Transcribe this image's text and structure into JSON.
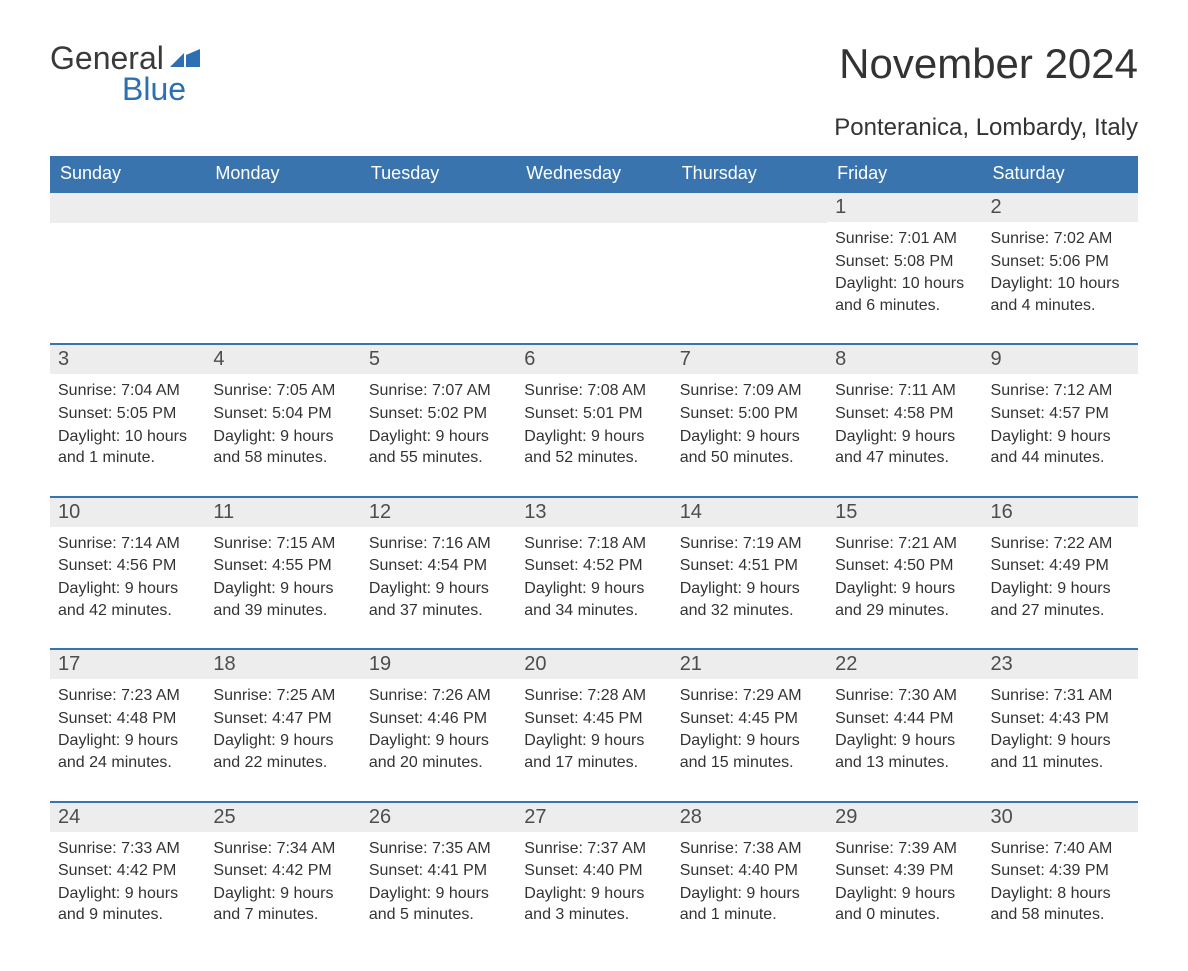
{
  "logo": {
    "text1": "General",
    "text2": "Blue",
    "flag_color": "#2c6fb3"
  },
  "title": "November 2024",
  "location": "Ponteranica, Lombardy, Italy",
  "colors": {
    "header_bg": "#3a74af",
    "header_text": "#ffffff",
    "row_border": "#3a74af",
    "daynum_bg": "#ededed",
    "text": "#333333"
  },
  "weekdays": [
    "Sunday",
    "Monday",
    "Tuesday",
    "Wednesday",
    "Thursday",
    "Friday",
    "Saturday"
  ],
  "weeks": [
    [
      null,
      null,
      null,
      null,
      null,
      {
        "n": "1",
        "sunrise": "Sunrise: 7:01 AM",
        "sunset": "Sunset: 5:08 PM",
        "daylight": "Daylight: 10 hours and 6 minutes."
      },
      {
        "n": "2",
        "sunrise": "Sunrise: 7:02 AM",
        "sunset": "Sunset: 5:06 PM",
        "daylight": "Daylight: 10 hours and 4 minutes."
      }
    ],
    [
      {
        "n": "3",
        "sunrise": "Sunrise: 7:04 AM",
        "sunset": "Sunset: 5:05 PM",
        "daylight": "Daylight: 10 hours and 1 minute."
      },
      {
        "n": "4",
        "sunrise": "Sunrise: 7:05 AM",
        "sunset": "Sunset: 5:04 PM",
        "daylight": "Daylight: 9 hours and 58 minutes."
      },
      {
        "n": "5",
        "sunrise": "Sunrise: 7:07 AM",
        "sunset": "Sunset: 5:02 PM",
        "daylight": "Daylight: 9 hours and 55 minutes."
      },
      {
        "n": "6",
        "sunrise": "Sunrise: 7:08 AM",
        "sunset": "Sunset: 5:01 PM",
        "daylight": "Daylight: 9 hours and 52 minutes."
      },
      {
        "n": "7",
        "sunrise": "Sunrise: 7:09 AM",
        "sunset": "Sunset: 5:00 PM",
        "daylight": "Daylight: 9 hours and 50 minutes."
      },
      {
        "n": "8",
        "sunrise": "Sunrise: 7:11 AM",
        "sunset": "Sunset: 4:58 PM",
        "daylight": "Daylight: 9 hours and 47 minutes."
      },
      {
        "n": "9",
        "sunrise": "Sunrise: 7:12 AM",
        "sunset": "Sunset: 4:57 PM",
        "daylight": "Daylight: 9 hours and 44 minutes."
      }
    ],
    [
      {
        "n": "10",
        "sunrise": "Sunrise: 7:14 AM",
        "sunset": "Sunset: 4:56 PM",
        "daylight": "Daylight: 9 hours and 42 minutes."
      },
      {
        "n": "11",
        "sunrise": "Sunrise: 7:15 AM",
        "sunset": "Sunset: 4:55 PM",
        "daylight": "Daylight: 9 hours and 39 minutes."
      },
      {
        "n": "12",
        "sunrise": "Sunrise: 7:16 AM",
        "sunset": "Sunset: 4:54 PM",
        "daylight": "Daylight: 9 hours and 37 minutes."
      },
      {
        "n": "13",
        "sunrise": "Sunrise: 7:18 AM",
        "sunset": "Sunset: 4:52 PM",
        "daylight": "Daylight: 9 hours and 34 minutes."
      },
      {
        "n": "14",
        "sunrise": "Sunrise: 7:19 AM",
        "sunset": "Sunset: 4:51 PM",
        "daylight": "Daylight: 9 hours and 32 minutes."
      },
      {
        "n": "15",
        "sunrise": "Sunrise: 7:21 AM",
        "sunset": "Sunset: 4:50 PM",
        "daylight": "Daylight: 9 hours and 29 minutes."
      },
      {
        "n": "16",
        "sunrise": "Sunrise: 7:22 AM",
        "sunset": "Sunset: 4:49 PM",
        "daylight": "Daylight: 9 hours and 27 minutes."
      }
    ],
    [
      {
        "n": "17",
        "sunrise": "Sunrise: 7:23 AM",
        "sunset": "Sunset: 4:48 PM",
        "daylight": "Daylight: 9 hours and 24 minutes."
      },
      {
        "n": "18",
        "sunrise": "Sunrise: 7:25 AM",
        "sunset": "Sunset: 4:47 PM",
        "daylight": "Daylight: 9 hours and 22 minutes."
      },
      {
        "n": "19",
        "sunrise": "Sunrise: 7:26 AM",
        "sunset": "Sunset: 4:46 PM",
        "daylight": "Daylight: 9 hours and 20 minutes."
      },
      {
        "n": "20",
        "sunrise": "Sunrise: 7:28 AM",
        "sunset": "Sunset: 4:45 PM",
        "daylight": "Daylight: 9 hours and 17 minutes."
      },
      {
        "n": "21",
        "sunrise": "Sunrise: 7:29 AM",
        "sunset": "Sunset: 4:45 PM",
        "daylight": "Daylight: 9 hours and 15 minutes."
      },
      {
        "n": "22",
        "sunrise": "Sunrise: 7:30 AM",
        "sunset": "Sunset: 4:44 PM",
        "daylight": "Daylight: 9 hours and 13 minutes."
      },
      {
        "n": "23",
        "sunrise": "Sunrise: 7:31 AM",
        "sunset": "Sunset: 4:43 PM",
        "daylight": "Daylight: 9 hours and 11 minutes."
      }
    ],
    [
      {
        "n": "24",
        "sunrise": "Sunrise: 7:33 AM",
        "sunset": "Sunset: 4:42 PM",
        "daylight": "Daylight: 9 hours and 9 minutes."
      },
      {
        "n": "25",
        "sunrise": "Sunrise: 7:34 AM",
        "sunset": "Sunset: 4:42 PM",
        "daylight": "Daylight: 9 hours and 7 minutes."
      },
      {
        "n": "26",
        "sunrise": "Sunrise: 7:35 AM",
        "sunset": "Sunset: 4:41 PM",
        "daylight": "Daylight: 9 hours and 5 minutes."
      },
      {
        "n": "27",
        "sunrise": "Sunrise: 7:37 AM",
        "sunset": "Sunset: 4:40 PM",
        "daylight": "Daylight: 9 hours and 3 minutes."
      },
      {
        "n": "28",
        "sunrise": "Sunrise: 7:38 AM",
        "sunset": "Sunset: 4:40 PM",
        "daylight": "Daylight: 9 hours and 1 minute."
      },
      {
        "n": "29",
        "sunrise": "Sunrise: 7:39 AM",
        "sunset": "Sunset: 4:39 PM",
        "daylight": "Daylight: 9 hours and 0 minutes."
      },
      {
        "n": "30",
        "sunrise": "Sunrise: 7:40 AM",
        "sunset": "Sunset: 4:39 PM",
        "daylight": "Daylight: 8 hours and 58 minutes."
      }
    ]
  ]
}
